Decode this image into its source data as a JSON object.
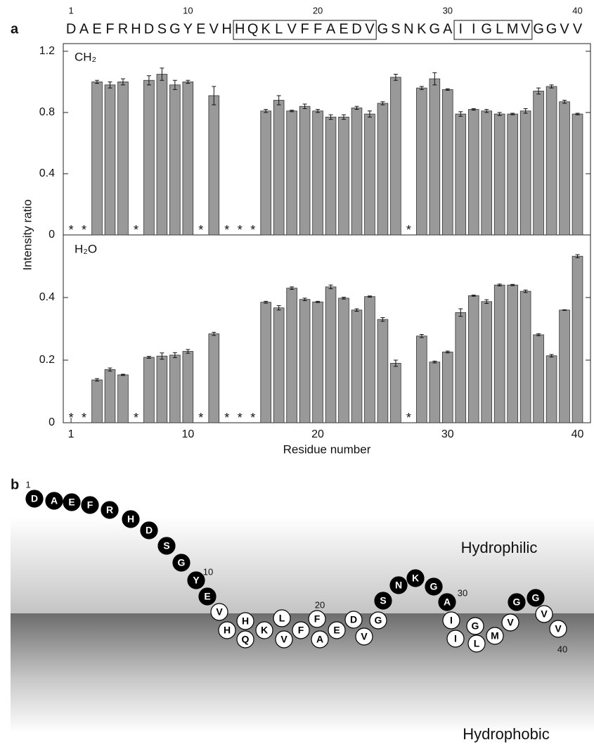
{
  "panel_labels": [
    "a",
    "b"
  ],
  "sequence": {
    "numbers": [
      1,
      10,
      20,
      30,
      40
    ],
    "letters": [
      "D",
      "A",
      "E",
      "F",
      "R",
      "H",
      "D",
      "S",
      "G",
      "Y",
      "E",
      "V",
      "H",
      "H",
      "Q",
      "K",
      "L",
      "V",
      "F",
      "F",
      "A",
      "E",
      "D",
      "V",
      "G",
      "S",
      "N",
      "K",
      "G",
      "A",
      "I",
      "I",
      "G",
      "L",
      "M",
      "V",
      "G",
      "G",
      "V",
      "V"
    ]
  },
  "chart_data": [
    {
      "type": "bar",
      "label": "CH₂",
      "ylabel": "Intensity ratio",
      "color": "#999999",
      "missing_label": "*",
      "x": [
        1,
        2,
        3,
        4,
        5,
        6,
        7,
        8,
        9,
        10,
        11,
        12,
        13,
        14,
        15,
        16,
        17,
        18,
        19,
        20,
        21,
        22,
        23,
        24,
        25,
        26,
        27,
        28,
        29,
        30,
        31,
        32,
        33,
        34,
        35,
        36,
        37,
        38,
        39,
        40
      ],
      "values": [
        null,
        null,
        1.0,
        0.98,
        1.0,
        null,
        1.01,
        1.05,
        0.98,
        1.0,
        null,
        0.91,
        null,
        null,
        null,
        0.81,
        0.88,
        0.81,
        0.84,
        0.81,
        0.77,
        0.77,
        0.83,
        0.79,
        0.86,
        1.03,
        null,
        0.96,
        1.02,
        0.95,
        0.79,
        0.82,
        0.81,
        0.79,
        0.79,
        0.81,
        0.94,
        0.97,
        0.87,
        0.79
      ],
      "errors": [
        null,
        null,
        0.01,
        0.02,
        0.02,
        null,
        0.03,
        0.04,
        0.03,
        0.01,
        null,
        0.06,
        null,
        null,
        null,
        0.01,
        0.03,
        0.005,
        0.015,
        0.01,
        0.015,
        0.015,
        0.01,
        0.02,
        0.01,
        0.02,
        null,
        0.01,
        0.04,
        0.005,
        0.015,
        0.005,
        0.01,
        0.01,
        0.005,
        0.015,
        0.02,
        0.01,
        0.01,
        0.005
      ],
      "xlim": [
        0.4,
        41
      ],
      "ylim": [
        0,
        1.25
      ],
      "yticks": [
        0,
        0.4,
        0.8,
        1.2
      ]
    },
    {
      "type": "bar",
      "label": "H₂O",
      "xlabel": "Residue number",
      "color": "#999999",
      "missing_label": "*",
      "x": [
        1,
        2,
        3,
        4,
        5,
        6,
        7,
        8,
        9,
        10,
        11,
        12,
        13,
        14,
        15,
        16,
        17,
        18,
        19,
        20,
        21,
        22,
        23,
        24,
        25,
        26,
        27,
        28,
        29,
        30,
        31,
        32,
        33,
        34,
        35,
        36,
        37,
        38,
        39,
        40
      ],
      "values": [
        null,
        null,
        0.137,
        0.17,
        0.153,
        null,
        0.209,
        0.213,
        0.216,
        0.228,
        null,
        0.284,
        null,
        null,
        null,
        0.385,
        0.367,
        0.43,
        0.394,
        0.386,
        0.434,
        0.398,
        0.36,
        0.403,
        0.33,
        0.19,
        null,
        0.277,
        0.194,
        0.226,
        0.352,
        0.406,
        0.387,
        0.44,
        0.44,
        0.42,
        0.281,
        0.214,
        0.36,
        0.532
      ],
      "errors": [
        null,
        null,
        0.004,
        0.005,
        0.002,
        null,
        0.003,
        0.01,
        0.008,
        0.006,
        null,
        0.005,
        null,
        null,
        null,
        0.003,
        0.007,
        0.004,
        0.004,
        0.002,
        0.006,
        0.003,
        0.004,
        0.002,
        0.006,
        0.01,
        null,
        0.005,
        0.003,
        0.003,
        0.012,
        0.002,
        0.006,
        0.003,
        0.002,
        0.004,
        0.003,
        0.004,
        0.001,
        0.005
      ],
      "xlim": [
        0.4,
        41
      ],
      "xticks": [
        1,
        10,
        20,
        30,
        40
      ],
      "ylim": [
        0,
        0.6
      ],
      "yticks": [
        0,
        0.2,
        0.4
      ]
    }
  ],
  "diagram": {
    "numbers": [
      1,
      10,
      20,
      30,
      40
    ],
    "region_labels": [
      "Hydrophilic",
      "Hydrophobic"
    ]
  }
}
